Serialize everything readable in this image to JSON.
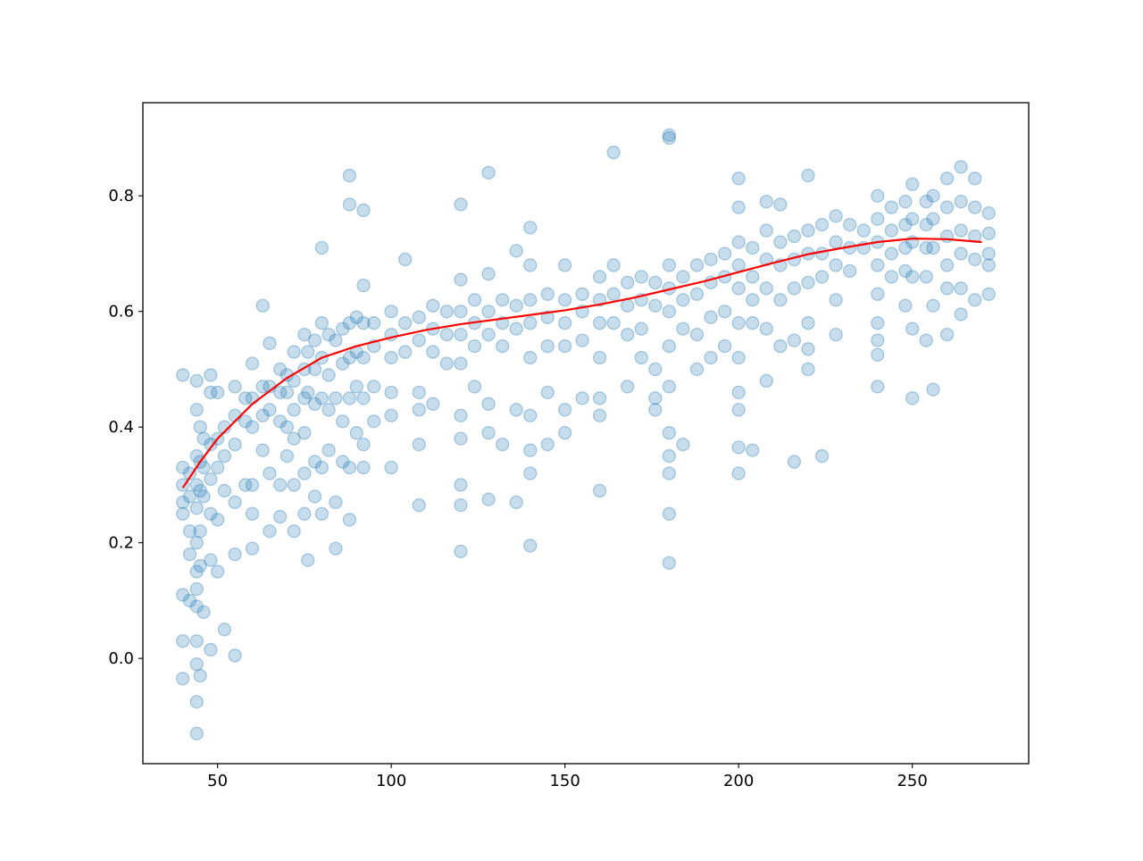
{
  "chart_data": {
    "type": "scatter",
    "xlim": [
      28.5,
      283.5
    ],
    "ylim": [
      -0.182,
      0.961
    ],
    "xticks": [
      50,
      100,
      150,
      200,
      250
    ],
    "yticks": [
      {
        "value": 0,
        "label": "0.0"
      },
      0.2,
      0.4,
      0.6,
      0.8
    ],
    "grid": false,
    "series": [
      {
        "type": "scatter",
        "color": "#1f77b4",
        "x": [
          40,
          40,
          40,
          40,
          40,
          40,
          40,
          40,
          42,
          42,
          42,
          42,
          42,
          44,
          44,
          44,
          44,
          44,
          44,
          44,
          44,
          44,
          44,
          44,
          44,
          44,
          45,
          45,
          45,
          45,
          45,
          45,
          46,
          46,
          46,
          46,
          48,
          48,
          48,
          48,
          48,
          48,
          48,
          50,
          50,
          50,
          50,
          50,
          52,
          52,
          52,
          52,
          55,
          55,
          55,
          55,
          55,
          55,
          58,
          58,
          58,
          60,
          60,
          60,
          60,
          60,
          60,
          63,
          63,
          63,
          63,
          65,
          65,
          65,
          65,
          65,
          68,
          68,
          68,
          68,
          68,
          70,
          70,
          70,
          70,
          72,
          72,
          72,
          72,
          72,
          72,
          75,
          75,
          75,
          75,
          75,
          75,
          76,
          76,
          76,
          78,
          78,
          78,
          78,
          78,
          80,
          80,
          80,
          80,
          80,
          80,
          82,
          82,
          82,
          82,
          84,
          84,
          84,
          84,
          86,
          86,
          86,
          86,
          88,
          88,
          88,
          88,
          88,
          88,
          88,
          90,
          90,
          90,
          90,
          92,
          92,
          92,
          92,
          92,
          92,
          92,
          95,
          95,
          95,
          95,
          100,
          100,
          100,
          100,
          100,
          100,
          104,
          104,
          104,
          108,
          108,
          108,
          108,
          108,
          108,
          112,
          112,
          112,
          112,
          116,
          116,
          116,
          120,
          120,
          120,
          120,
          120,
          120,
          120,
          120,
          120,
          120,
          124,
          124,
          124,
          124,
          128,
          128,
          128,
          128,
          128,
          128,
          128,
          132,
          132,
          132,
          132,
          136,
          136,
          136,
          136,
          136,
          140,
          140,
          140,
          140,
          140,
          140,
          140,
          140,
          140,
          145,
          145,
          145,
          145,
          145,
          150,
          150,
          150,
          150,
          150,
          150,
          155,
          155,
          155,
          155,
          160,
          160,
          160,
          160,
          160,
          160,
          160,
          164,
          164,
          164,
          164,
          168,
          168,
          168,
          168,
          172,
          172,
          172,
          172,
          176,
          176,
          176,
          176,
          176,
          180,
          180,
          180,
          180,
          180,
          180,
          180,
          180,
          180,
          180,
          180,
          180,
          184,
          184,
          184,
          184,
          188,
          188,
          188,
          188,
          192,
          192,
          192,
          192,
          196,
          196,
          196,
          196,
          200,
          200,
          200,
          200,
          200,
          200,
          200,
          200,
          200,
          200,
          200,
          204,
          204,
          204,
          204,
          204,
          208,
          208,
          208,
          208,
          208,
          208,
          212,
          212,
          212,
          212,
          212,
          216,
          216,
          216,
          216,
          216,
          220,
          220,
          220,
          220,
          220,
          220,
          220,
          224,
          224,
          224,
          224,
          228,
          228,
          228,
          228,
          228,
          232,
          232,
          232,
          236,
          236,
          240,
          240,
          240,
          240,
          240,
          240,
          240,
          240,
          240,
          244,
          244,
          244,
          244,
          248,
          248,
          248,
          248,
          248,
          250,
          250,
          250,
          250,
          250,
          250,
          254,
          254,
          254,
          254,
          254,
          256,
          256,
          256,
          256,
          256,
          260,
          260,
          260,
          260,
          260,
          260,
          264,
          264,
          264,
          264,
          264,
          264,
          268,
          268,
          268,
          268,
          268,
          272,
          272,
          272,
          272,
          272
        ],
        "values": [
          0.49,
          0.33,
          0.3,
          0.27,
          0.25,
          0.11,
          0.03,
          -0.035,
          0.32,
          0.28,
          0.22,
          0.18,
          0.1,
          0.48,
          0.43,
          0.35,
          0.3,
          0.26,
          0.2,
          0.15,
          0.12,
          0.09,
          0.03,
          -0.01,
          -0.075,
          -0.13,
          0.4,
          0.34,
          0.29,
          0.22,
          0.16,
          -0.03,
          0.38,
          0.33,
          0.28,
          0.08,
          0.49,
          0.46,
          0.37,
          0.31,
          0.25,
          0.17,
          0.015,
          0.46,
          0.38,
          0.33,
          0.24,
          0.15,
          0.4,
          0.35,
          0.29,
          0.05,
          0.47,
          0.42,
          0.37,
          0.27,
          0.18,
          0.005,
          0.45,
          0.41,
          0.3,
          0.51,
          0.45,
          0.4,
          0.3,
          0.25,
          0.19,
          0.61,
          0.47,
          0.42,
          0.36,
          0.545,
          0.47,
          0.43,
          0.32,
          0.22,
          0.5,
          0.46,
          0.41,
          0.3,
          0.245,
          0.49,
          0.46,
          0.4,
          0.35,
          0.53,
          0.48,
          0.43,
          0.38,
          0.3,
          0.22,
          0.56,
          0.5,
          0.45,
          0.39,
          0.32,
          0.25,
          0.53,
          0.46,
          0.17,
          0.55,
          0.5,
          0.44,
          0.34,
          0.28,
          0.71,
          0.58,
          0.52,
          0.45,
          0.33,
          0.25,
          0.56,
          0.49,
          0.43,
          0.36,
          0.55,
          0.45,
          0.27,
          0.19,
          0.57,
          0.51,
          0.41,
          0.34,
          0.835,
          0.785,
          0.58,
          0.52,
          0.45,
          0.33,
          0.24,
          0.59,
          0.53,
          0.47,
          0.39,
          0.775,
          0.645,
          0.58,
          0.52,
          0.45,
          0.37,
          0.33,
          0.58,
          0.54,
          0.47,
          0.41,
          0.6,
          0.56,
          0.52,
          0.46,
          0.42,
          0.33,
          0.69,
          0.58,
          0.53,
          0.59,
          0.55,
          0.46,
          0.43,
          0.37,
          0.265,
          0.61,
          0.57,
          0.53,
          0.44,
          0.6,
          0.56,
          0.51,
          0.785,
          0.655,
          0.6,
          0.56,
          0.51,
          0.42,
          0.38,
          0.3,
          0.265,
          0.185,
          0.62,
          0.58,
          0.54,
          0.47,
          0.84,
          0.665,
          0.6,
          0.56,
          0.44,
          0.39,
          0.275,
          0.62,
          0.58,
          0.54,
          0.37,
          0.705,
          0.61,
          0.57,
          0.43,
          0.27,
          0.745,
          0.68,
          0.62,
          0.58,
          0.52,
          0.42,
          0.36,
          0.32,
          0.195,
          0.63,
          0.59,
          0.54,
          0.46,
          0.37,
          0.68,
          0.62,
          0.58,
          0.54,
          0.43,
          0.39,
          0.63,
          0.6,
          0.55,
          0.45,
          0.66,
          0.62,
          0.58,
          0.52,
          0.45,
          0.42,
          0.29,
          0.875,
          0.68,
          0.63,
          0.58,
          0.65,
          0.61,
          0.56,
          0.47,
          0.66,
          0.62,
          0.57,
          0.52,
          0.65,
          0.61,
          0.5,
          0.45,
          0.43,
          0.905,
          0.9,
          0.68,
          0.64,
          0.6,
          0.54,
          0.47,
          0.39,
          0.35,
          0.32,
          0.25,
          0.165,
          0.66,
          0.62,
          0.57,
          0.37,
          0.68,
          0.63,
          0.56,
          0.5,
          0.69,
          0.65,
          0.59,
          0.52,
          0.7,
          0.66,
          0.6,
          0.54,
          0.83,
          0.78,
          0.72,
          0.68,
          0.64,
          0.58,
          0.52,
          0.46,
          0.43,
          0.365,
          0.32,
          0.71,
          0.66,
          0.62,
          0.58,
          0.36,
          0.79,
          0.74,
          0.69,
          0.64,
          0.57,
          0.48,
          0.785,
          0.72,
          0.68,
          0.62,
          0.54,
          0.73,
          0.69,
          0.64,
          0.55,
          0.34,
          0.835,
          0.74,
          0.7,
          0.65,
          0.58,
          0.535,
          0.5,
          0.75,
          0.7,
          0.66,
          0.35,
          0.765,
          0.72,
          0.68,
          0.62,
          0.56,
          0.75,
          0.71,
          0.67,
          0.74,
          0.71,
          0.8,
          0.76,
          0.72,
          0.68,
          0.63,
          0.58,
          0.55,
          0.525,
          0.47,
          0.78,
          0.74,
          0.7,
          0.66,
          0.79,
          0.75,
          0.71,
          0.67,
          0.61,
          0.82,
          0.76,
          0.72,
          0.66,
          0.57,
          0.45,
          0.79,
          0.75,
          0.71,
          0.66,
          0.55,
          0.8,
          0.76,
          0.71,
          0.61,
          0.465,
          0.83,
          0.78,
          0.73,
          0.68,
          0.64,
          0.56,
          0.85,
          0.79,
          0.74,
          0.7,
          0.64,
          0.595,
          0.83,
          0.78,
          0.73,
          0.69,
          0.62,
          0.77,
          0.735,
          0.7,
          0.68,
          0.63
        ]
      },
      {
        "type": "line",
        "color": "#ff0000",
        "x": [
          40,
          45,
          50,
          55,
          60,
          70,
          80,
          90,
          100,
          110,
          120,
          130,
          140,
          150,
          160,
          170,
          180,
          190,
          200,
          210,
          220,
          230,
          240,
          250,
          260,
          270
        ],
        "values": [
          0.295,
          0.34,
          0.38,
          0.41,
          0.44,
          0.485,
          0.52,
          0.54,
          0.555,
          0.568,
          0.578,
          0.586,
          0.594,
          0.602,
          0.612,
          0.624,
          0.638,
          0.652,
          0.668,
          0.684,
          0.699,
          0.71,
          0.72,
          0.726,
          0.725,
          0.72
        ]
      }
    ]
  }
}
